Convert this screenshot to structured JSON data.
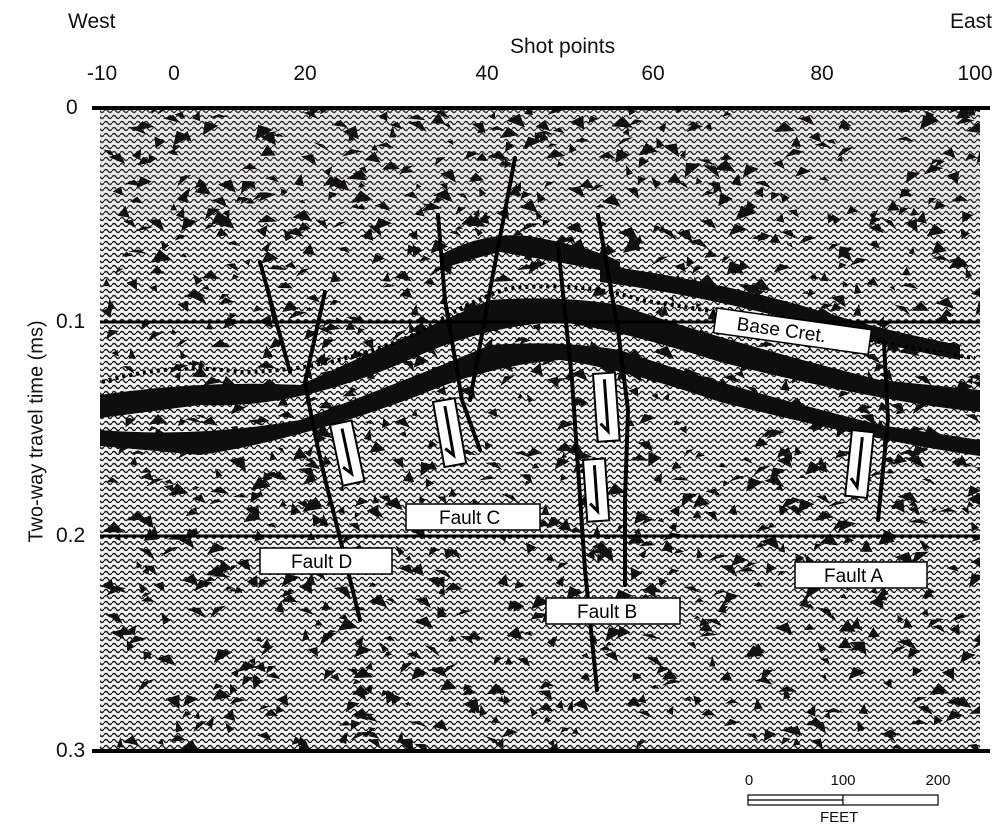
{
  "header": {
    "west_label": "West",
    "east_label": "East",
    "x_axis_title": "Shot points"
  },
  "x_ticks": [
    "-10",
    "0",
    "20",
    "40",
    "60",
    "80",
    "100"
  ],
  "y_axis": {
    "title": "Two-way travel time (ms)",
    "ticks": [
      "0",
      "0.1",
      "0.2",
      "0.3"
    ]
  },
  "annotations": {
    "base_cret": "Base Cret.",
    "fault_a": "Fault A",
    "fault_b": "Fault B",
    "fault_c": "Fault C",
    "fault_d": "Fault D"
  },
  "scale_bar": {
    "ticks": [
      "0",
      "100",
      "200"
    ],
    "unit": "FEET"
  },
  "colors": {
    "seismic_dark": "#111111",
    "seismic_light": "#f4f4f4",
    "grid_tint": "#c8a7a7"
  }
}
